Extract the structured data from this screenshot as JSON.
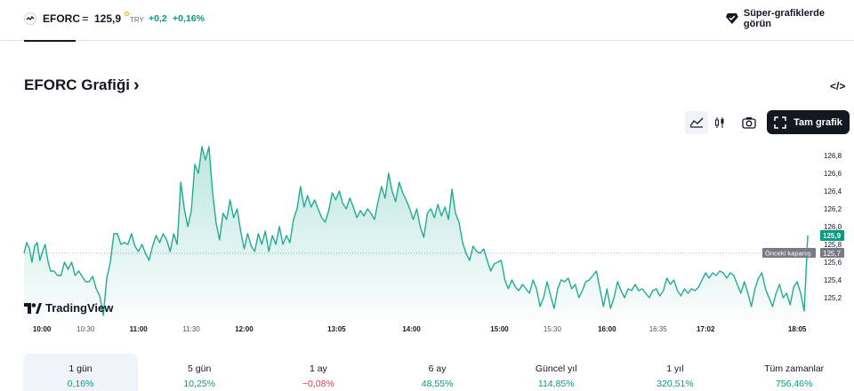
{
  "header": {
    "symbol": "EFORC",
    "equals": "=",
    "price": "125,9",
    "currency": "TRY",
    "change": "+0,2",
    "change_pct": "+0,16%",
    "super_charts_label": "Süper-grafiklerde görün"
  },
  "title": {
    "text": "EFORC Grafiği",
    "chevron": "›"
  },
  "embed_label": "</>",
  "toolbar": {
    "full_chart_label": "Tam grafik",
    "icons": [
      "area-chart-icon",
      "candles-icon",
      "camera-icon",
      "fullscreen-icon"
    ]
  },
  "logo": {
    "text": "TradingView"
  },
  "chart_data": {
    "type": "area",
    "line_color": "#22ab94",
    "y_ticks": [
      "126,8",
      "126,6",
      "126,4",
      "126,2",
      "126,0",
      "125,8",
      "125,6",
      "125,4",
      "125,2"
    ],
    "ylim": [
      125.0,
      126.9
    ],
    "x_labels": [
      {
        "t": 0,
        "label": "10:00",
        "major": true
      },
      {
        "t": 60,
        "label": "10:30",
        "major": false
      },
      {
        "t": 120,
        "label": "11:00",
        "major": true
      },
      {
        "t": 180,
        "label": "11:30",
        "major": false
      },
      {
        "t": 240,
        "label": "12:00",
        "major": true
      },
      {
        "t": 345,
        "label": "13:05",
        "major": true
      },
      {
        "t": 430,
        "label": "14:00",
        "major": true
      },
      {
        "t": 530,
        "label": "15:00",
        "major": true
      },
      {
        "t": 590,
        "label": "15:30",
        "major": false
      },
      {
        "t": 652,
        "label": "16:00",
        "major": true
      },
      {
        "t": 710,
        "label": "16:35",
        "major": false
      },
      {
        "t": 764,
        "label": "17:02",
        "major": true
      },
      {
        "t": 868,
        "label": "18:05",
        "major": true
      }
    ],
    "t_range": [
      -10,
      880
    ],
    "current": {
      "value": 125.9,
      "label": "125,9"
    },
    "previous_close": {
      "value": 125.7,
      "label": "125,7",
      "text": "Önceki kapanış"
    },
    "points": [
      [
        -10,
        125.7
      ],
      [
        -7,
        125.82
      ],
      [
        -4,
        125.76
      ],
      [
        -1,
        125.6
      ],
      [
        2,
        125.78
      ],
      [
        5,
        125.82
      ],
      [
        8,
        125.62
      ],
      [
        11,
        125.72
      ],
      [
        14,
        125.8
      ],
      [
        17,
        125.62
      ],
      [
        20,
        125.5
      ],
      [
        24,
        125.5
      ],
      [
        28,
        125.45
      ],
      [
        32,
        125.45
      ],
      [
        36,
        125.6
      ],
      [
        40,
        125.52
      ],
      [
        44,
        125.6
      ],
      [
        48,
        125.45
      ],
      [
        52,
        125.5
      ],
      [
        56,
        125.44
      ],
      [
        60,
        125.38
      ],
      [
        64,
        125.38
      ],
      [
        68,
        125.44
      ],
      [
        72,
        125.3
      ],
      [
        76,
        125.22
      ],
      [
        80,
        125.0
      ],
      [
        84,
        125.42
      ],
      [
        88,
        125.6
      ],
      [
        92,
        125.92
      ],
      [
        96,
        125.92
      ],
      [
        100,
        125.8
      ],
      [
        104,
        125.82
      ],
      [
        108,
        125.8
      ],
      [
        112,
        125.92
      ],
      [
        116,
        125.78
      ],
      [
        120,
        125.72
      ],
      [
        124,
        125.8
      ],
      [
        128,
        125.7
      ],
      [
        132,
        125.62
      ],
      [
        136,
        125.78
      ],
      [
        140,
        125.9
      ],
      [
        144,
        125.82
      ],
      [
        148,
        125.92
      ],
      [
        152,
        125.85
      ],
      [
        156,
        125.72
      ],
      [
        160,
        125.92
      ],
      [
        164,
        125.8
      ],
      [
        168,
        126.5
      ],
      [
        172,
        126.2
      ],
      [
        176,
        126.0
      ],
      [
        180,
        126.18
      ],
      [
        184,
        126.7
      ],
      [
        188,
        126.6
      ],
      [
        192,
        126.9
      ],
      [
        196,
        126.75
      ],
      [
        200,
        126.9
      ],
      [
        204,
        126.4
      ],
      [
        208,
        126.05
      ],
      [
        212,
        125.85
      ],
      [
        216,
        126.15
      ],
      [
        220,
        126.08
      ],
      [
        224,
        126.3
      ],
      [
        228,
        126.1
      ],
      [
        232,
        126.2
      ],
      [
        236,
        125.95
      ],
      [
        240,
        125.75
      ],
      [
        244,
        125.92
      ],
      [
        248,
        125.78
      ],
      [
        252,
        125.72
      ],
      [
        256,
        125.92
      ],
      [
        260,
        125.8
      ],
      [
        264,
        125.95
      ],
      [
        268,
        125.72
      ],
      [
        272,
        125.9
      ],
      [
        276,
        125.8
      ],
      [
        280,
        126.0
      ],
      [
        284,
        125.8
      ],
      [
        288,
        125.9
      ],
      [
        292,
        125.82
      ],
      [
        296,
        126.08
      ],
      [
        300,
        126.2
      ],
      [
        304,
        126.45
      ],
      [
        308,
        126.22
      ],
      [
        312,
        126.35
      ],
      [
        316,
        126.22
      ],
      [
        320,
        126.3
      ],
      [
        324,
        126.2
      ],
      [
        328,
        126.1
      ],
      [
        332,
        126.05
      ],
      [
        336,
        126.18
      ],
      [
        340,
        126.38
      ],
      [
        344,
        126.3
      ],
      [
        348,
        126.4
      ],
      [
        352,
        126.26
      ],
      [
        356,
        126.2
      ],
      [
        360,
        126.32
      ],
      [
        364,
        126.22
      ],
      [
        368,
        126.1
      ],
      [
        372,
        126.18
      ],
      [
        376,
        126.12
      ],
      [
        380,
        126.2
      ],
      [
        384,
        126.15
      ],
      [
        388,
        126.08
      ],
      [
        392,
        126.28
      ],
      [
        396,
        126.45
      ],
      [
        400,
        126.32
      ],
      [
        404,
        126.6
      ],
      [
        408,
        126.4
      ],
      [
        412,
        126.28
      ],
      [
        416,
        126.5
      ],
      [
        420,
        126.38
      ],
      [
        424,
        126.3
      ],
      [
        428,
        126.2
      ],
      [
        432,
        126.08
      ],
      [
        436,
        126.2
      ],
      [
        440,
        126.0
      ],
      [
        444,
        125.88
      ],
      [
        448,
        126.15
      ],
      [
        452,
        126.2
      ],
      [
        456,
        126.1
      ],
      [
        460,
        126.25
      ],
      [
        464,
        126.12
      ],
      [
        468,
        126.22
      ],
      [
        472,
        126.08
      ],
      [
        476,
        126.42
      ],
      [
        480,
        126.15
      ],
      [
        484,
        126.05
      ],
      [
        488,
        125.82
      ],
      [
        492,
        125.7
      ],
      [
        496,
        125.62
      ],
      [
        500,
        125.78
      ],
      [
        504,
        125.72
      ],
      [
        508,
        125.7
      ],
      [
        512,
        125.75
      ],
      [
        516,
        125.62
      ],
      [
        520,
        125.5
      ],
      [
        524,
        125.58
      ],
      [
        528,
        125.6
      ],
      [
        532,
        125.62
      ],
      [
        536,
        125.4
      ],
      [
        540,
        125.3
      ],
      [
        544,
        125.4
      ],
      [
        548,
        125.32
      ],
      [
        552,
        125.28
      ],
      [
        556,
        125.35
      ],
      [
        560,
        125.3
      ],
      [
        564,
        125.25
      ],
      [
        568,
        125.4
      ],
      [
        572,
        125.3
      ],
      [
        576,
        125.1
      ],
      [
        580,
        125.2
      ],
      [
        584,
        125.38
      ],
      [
        588,
        125.22
      ],
      [
        592,
        125.08
      ],
      [
        596,
        125.3
      ],
      [
        600,
        125.4
      ],
      [
        604,
        125.38
      ],
      [
        608,
        125.42
      ],
      [
        612,
        125.3
      ],
      [
        616,
        125.35
      ],
      [
        620,
        125.2
      ],
      [
        624,
        125.28
      ],
      [
        628,
        125.38
      ],
      [
        632,
        125.4
      ],
      [
        636,
        125.45
      ],
      [
        640,
        125.5
      ],
      [
        644,
        125.3
      ],
      [
        648,
        125.1
      ],
      [
        652,
        125.3
      ],
      [
        656,
        125.08
      ],
      [
        660,
        125.2
      ],
      [
        664,
        125.38
      ],
      [
        668,
        125.28
      ],
      [
        672,
        125.2
      ],
      [
        676,
        125.3
      ],
      [
        680,
        125.28
      ],
      [
        684,
        125.35
      ],
      [
        688,
        125.28
      ],
      [
        692,
        125.3
      ],
      [
        696,
        125.25
      ],
      [
        700,
        125.2
      ],
      [
        704,
        125.28
      ],
      [
        708,
        125.3
      ],
      [
        712,
        125.22
      ],
      [
        716,
        125.28
      ],
      [
        720,
        125.42
      ],
      [
        724,
        125.35
      ],
      [
        728,
        125.4
      ],
      [
        732,
        125.28
      ],
      [
        736,
        125.22
      ],
      [
        740,
        125.3
      ],
      [
        744,
        125.25
      ],
      [
        748,
        125.3
      ],
      [
        752,
        125.28
      ],
      [
        756,
        125.32
      ],
      [
        760,
        125.4
      ],
      [
        764,
        125.48
      ],
      [
        768,
        125.42
      ],
      [
        772,
        125.48
      ],
      [
        776,
        125.45
      ],
      [
        780,
        125.5
      ],
      [
        784,
        125.48
      ],
      [
        788,
        125.42
      ],
      [
        792,
        125.48
      ],
      [
        796,
        125.45
      ],
      [
        800,
        125.35
      ],
      [
        804,
        125.25
      ],
      [
        808,
        125.38
      ],
      [
        812,
        125.25
      ],
      [
        816,
        125.1
      ],
      [
        820,
        125.3
      ],
      [
        824,
        125.42
      ],
      [
        828,
        125.48
      ],
      [
        832,
        125.3
      ],
      [
        836,
        125.2
      ],
      [
        840,
        125.1
      ],
      [
        844,
        125.25
      ],
      [
        848,
        125.35
      ],
      [
        852,
        125.2
      ],
      [
        856,
        125.25
      ],
      [
        860,
        125.12
      ],
      [
        864,
        125.32
      ],
      [
        868,
        125.38
      ],
      [
        872,
        125.25
      ],
      [
        876,
        125.05
      ],
      [
        880,
        125.9
      ]
    ]
  },
  "periods": [
    {
      "label": "1 gün",
      "value": "0,16%",
      "sign": "pos",
      "active": true
    },
    {
      "label": "5 gün",
      "value": "10,25%",
      "sign": "pos",
      "active": false
    },
    {
      "label": "1 ay",
      "value": "−0,08%",
      "sign": "neg",
      "active": false
    },
    {
      "label": "6 ay",
      "value": "48,55%",
      "sign": "pos",
      "active": false
    },
    {
      "label": "Güncel yıl",
      "value": "114,85%",
      "sign": "pos",
      "active": false
    },
    {
      "label": "1 yıl",
      "value": "320,51%",
      "sign": "pos",
      "active": false
    },
    {
      "label": "Tüm zamanlar",
      "value": "756,46%",
      "sign": "pos",
      "active": false
    }
  ]
}
